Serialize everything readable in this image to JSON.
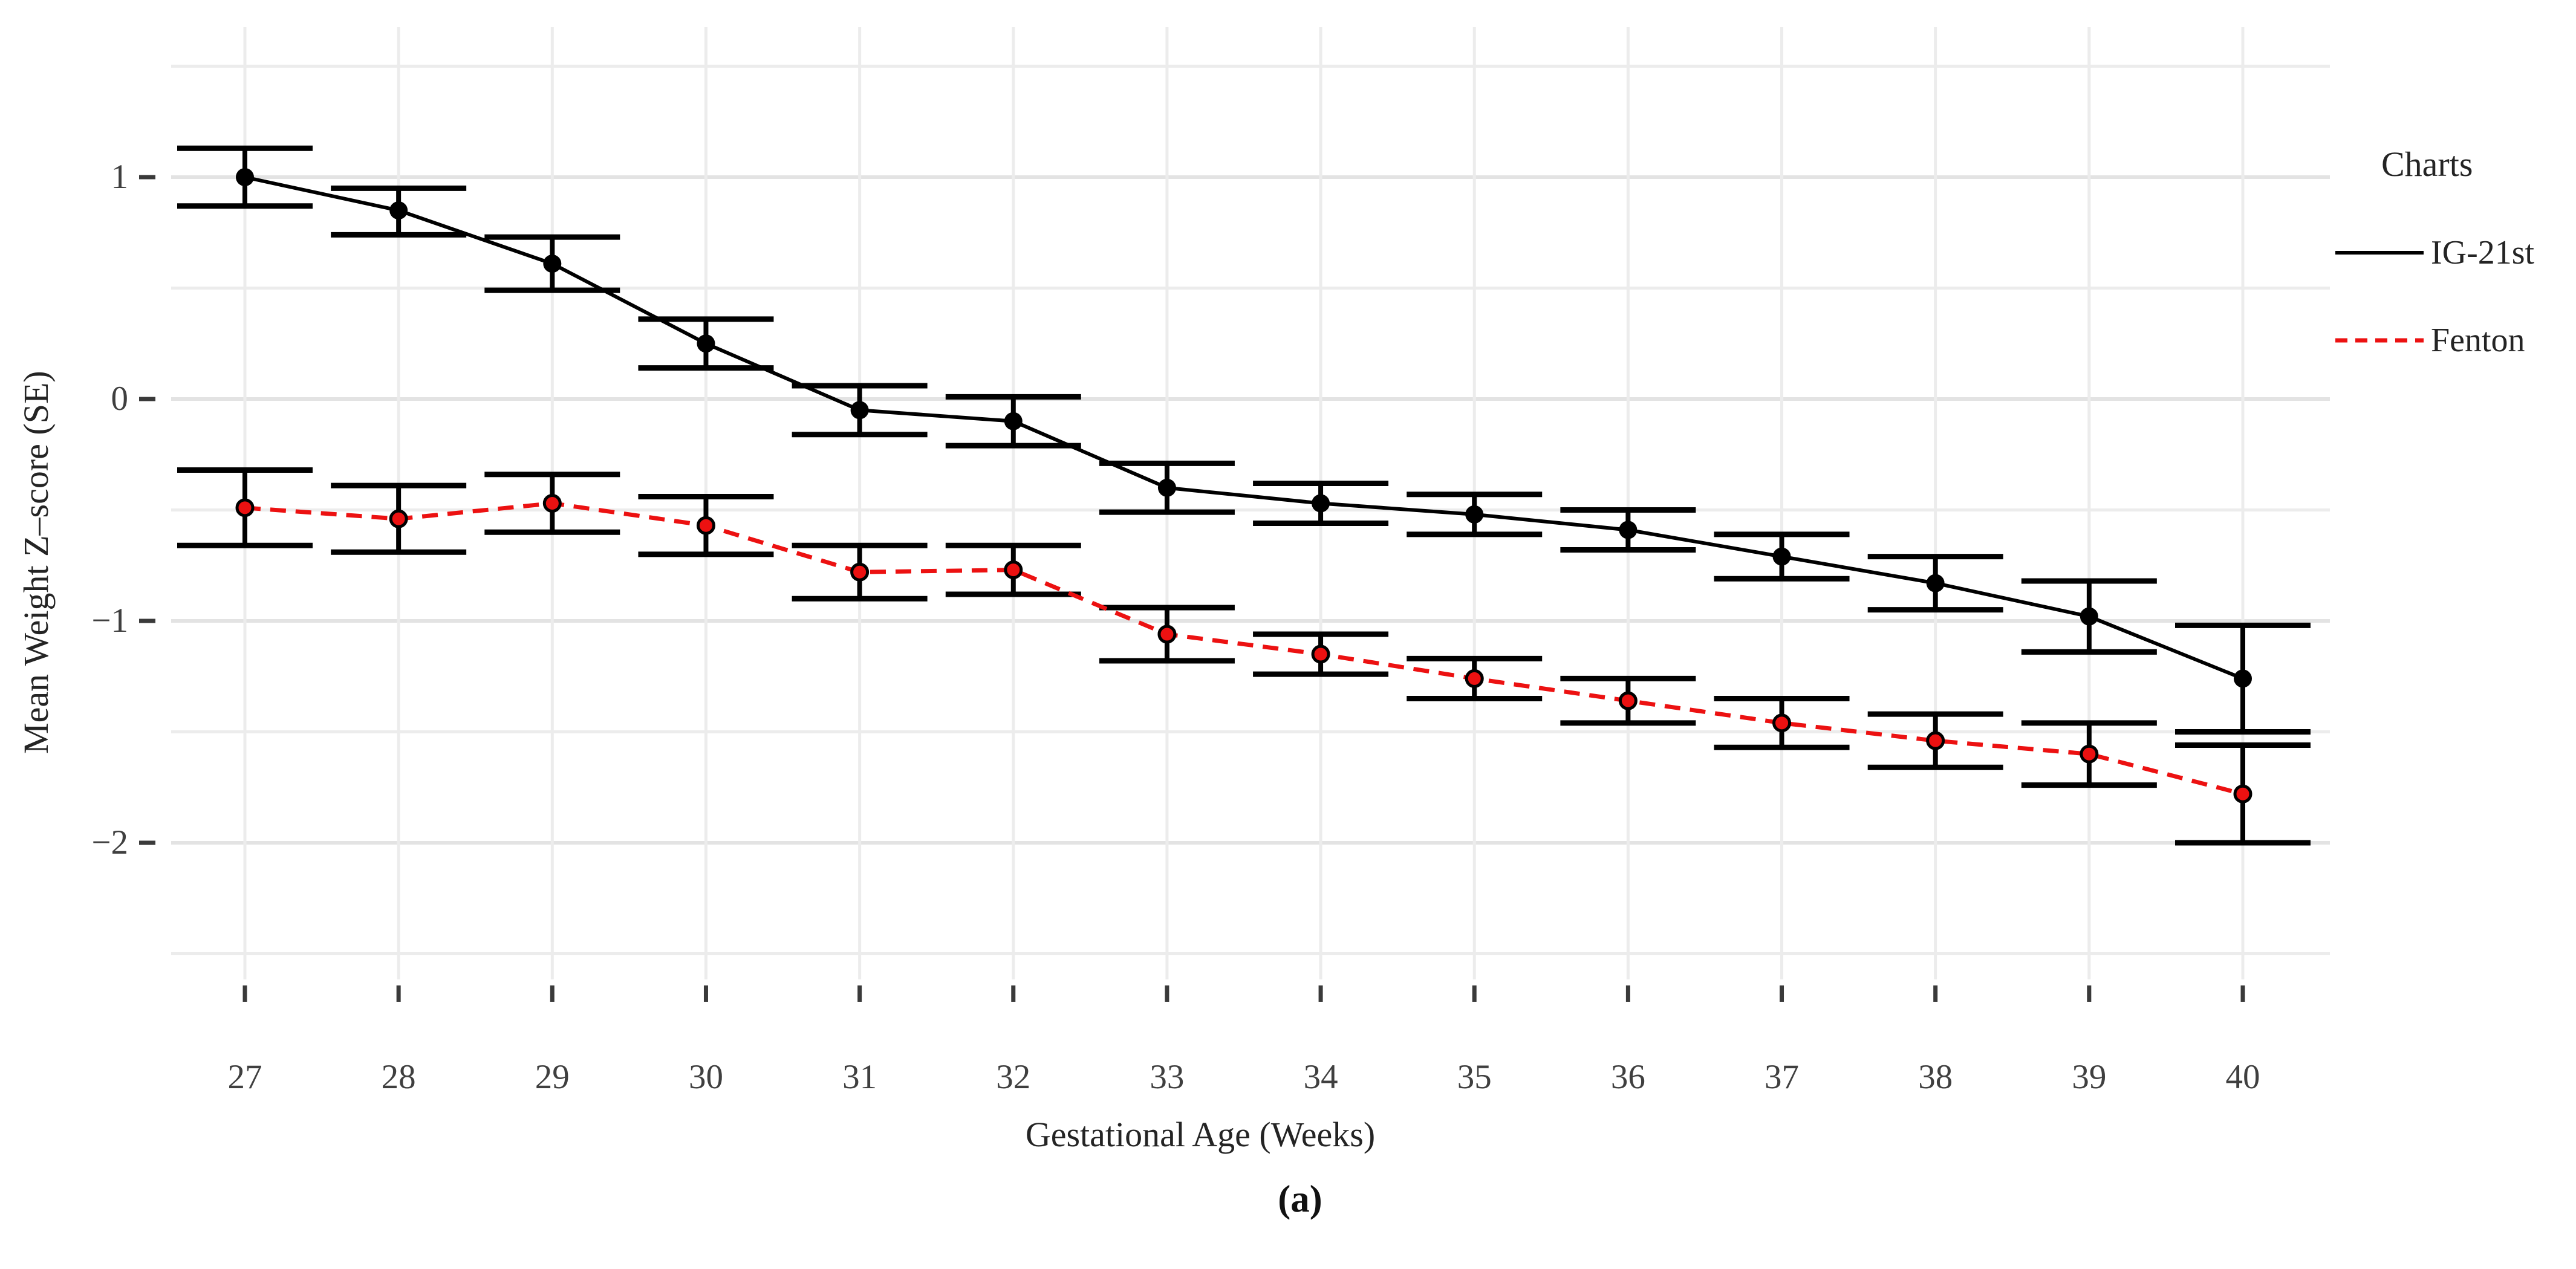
{
  "caption": "(a)",
  "chart_data": {
    "type": "line",
    "title": "",
    "xlabel": "Gestational Age (Weeks)",
    "ylabel": "Mean Weight Z–score (SE)",
    "legend_title": "Charts",
    "legend_position": "right",
    "categories": [
      27,
      28,
      29,
      30,
      31,
      32,
      33,
      34,
      35,
      36,
      37,
      38,
      39,
      40
    ],
    "x_tick_labels": [
      "27",
      "28",
      "29",
      "30",
      "31",
      "32",
      "33",
      "34",
      "35",
      "36",
      "37",
      "38",
      "39",
      "40"
    ],
    "y_tick_values": [
      1,
      0,
      -1,
      -2
    ],
    "y_tick_labels": [
      "1",
      "0",
      "−1",
      "−2"
    ],
    "y_minor_gridlines": [
      1.5,
      0.5,
      -0.5,
      -1.5,
      -2.5
    ],
    "ylim": [
      -2.65,
      1.65
    ],
    "grid": "light gray major and minor horizontal lines at 0.5 steps, vertical line per week",
    "series": [
      {
        "name": "IG-21st",
        "line_style": "solid",
        "color": "#000000",
        "point_style": "filled black circle",
        "values": [
          1.0,
          0.85,
          0.61,
          0.25,
          -0.05,
          -0.1,
          -0.4,
          -0.47,
          -0.52,
          -0.59,
          -0.71,
          -0.83,
          -0.98,
          -1.26
        ],
        "err_low": [
          0.87,
          0.74,
          0.49,
          0.14,
          -0.16,
          -0.21,
          -0.51,
          -0.56,
          -0.61,
          -0.68,
          -0.81,
          -0.95,
          -1.14,
          -1.5
        ],
        "err_high": [
          1.13,
          0.95,
          0.73,
          0.36,
          0.06,
          0.01,
          -0.29,
          -0.38,
          -0.43,
          -0.5,
          -0.61,
          -0.71,
          -0.82,
          -1.02
        ]
      },
      {
        "name": "Fenton",
        "line_style": "dashed",
        "color": "#ec1111",
        "point_style": "red circle with black outline",
        "values": [
          -0.49,
          -0.54,
          -0.47,
          -0.57,
          -0.78,
          -0.77,
          -1.06,
          -1.15,
          -1.26,
          -1.36,
          -1.46,
          -1.54,
          -1.6,
          -1.78
        ],
        "err_low": [
          -0.66,
          -0.69,
          -0.6,
          -0.7,
          -0.9,
          -0.88,
          -1.18,
          -1.24,
          -1.35,
          -1.46,
          -1.57,
          -1.66,
          -1.74,
          -2.0
        ],
        "err_high": [
          -0.32,
          -0.39,
          -0.34,
          -0.44,
          -0.66,
          -0.66,
          -0.94,
          -1.06,
          -1.17,
          -1.26,
          -1.35,
          -1.42,
          -1.46,
          -1.56
        ]
      }
    ],
    "error_bar_color": "#000000"
  },
  "colors": {
    "background": "#ffffff",
    "grid_major": "#e3e3e3",
    "grid_minor": "#ececec",
    "tick_mark": "#3a3a3a",
    "tick_label": "#3f3f3f",
    "axis_title": "#242424",
    "series_black": "#000000",
    "series_red": "#ec1111"
  }
}
